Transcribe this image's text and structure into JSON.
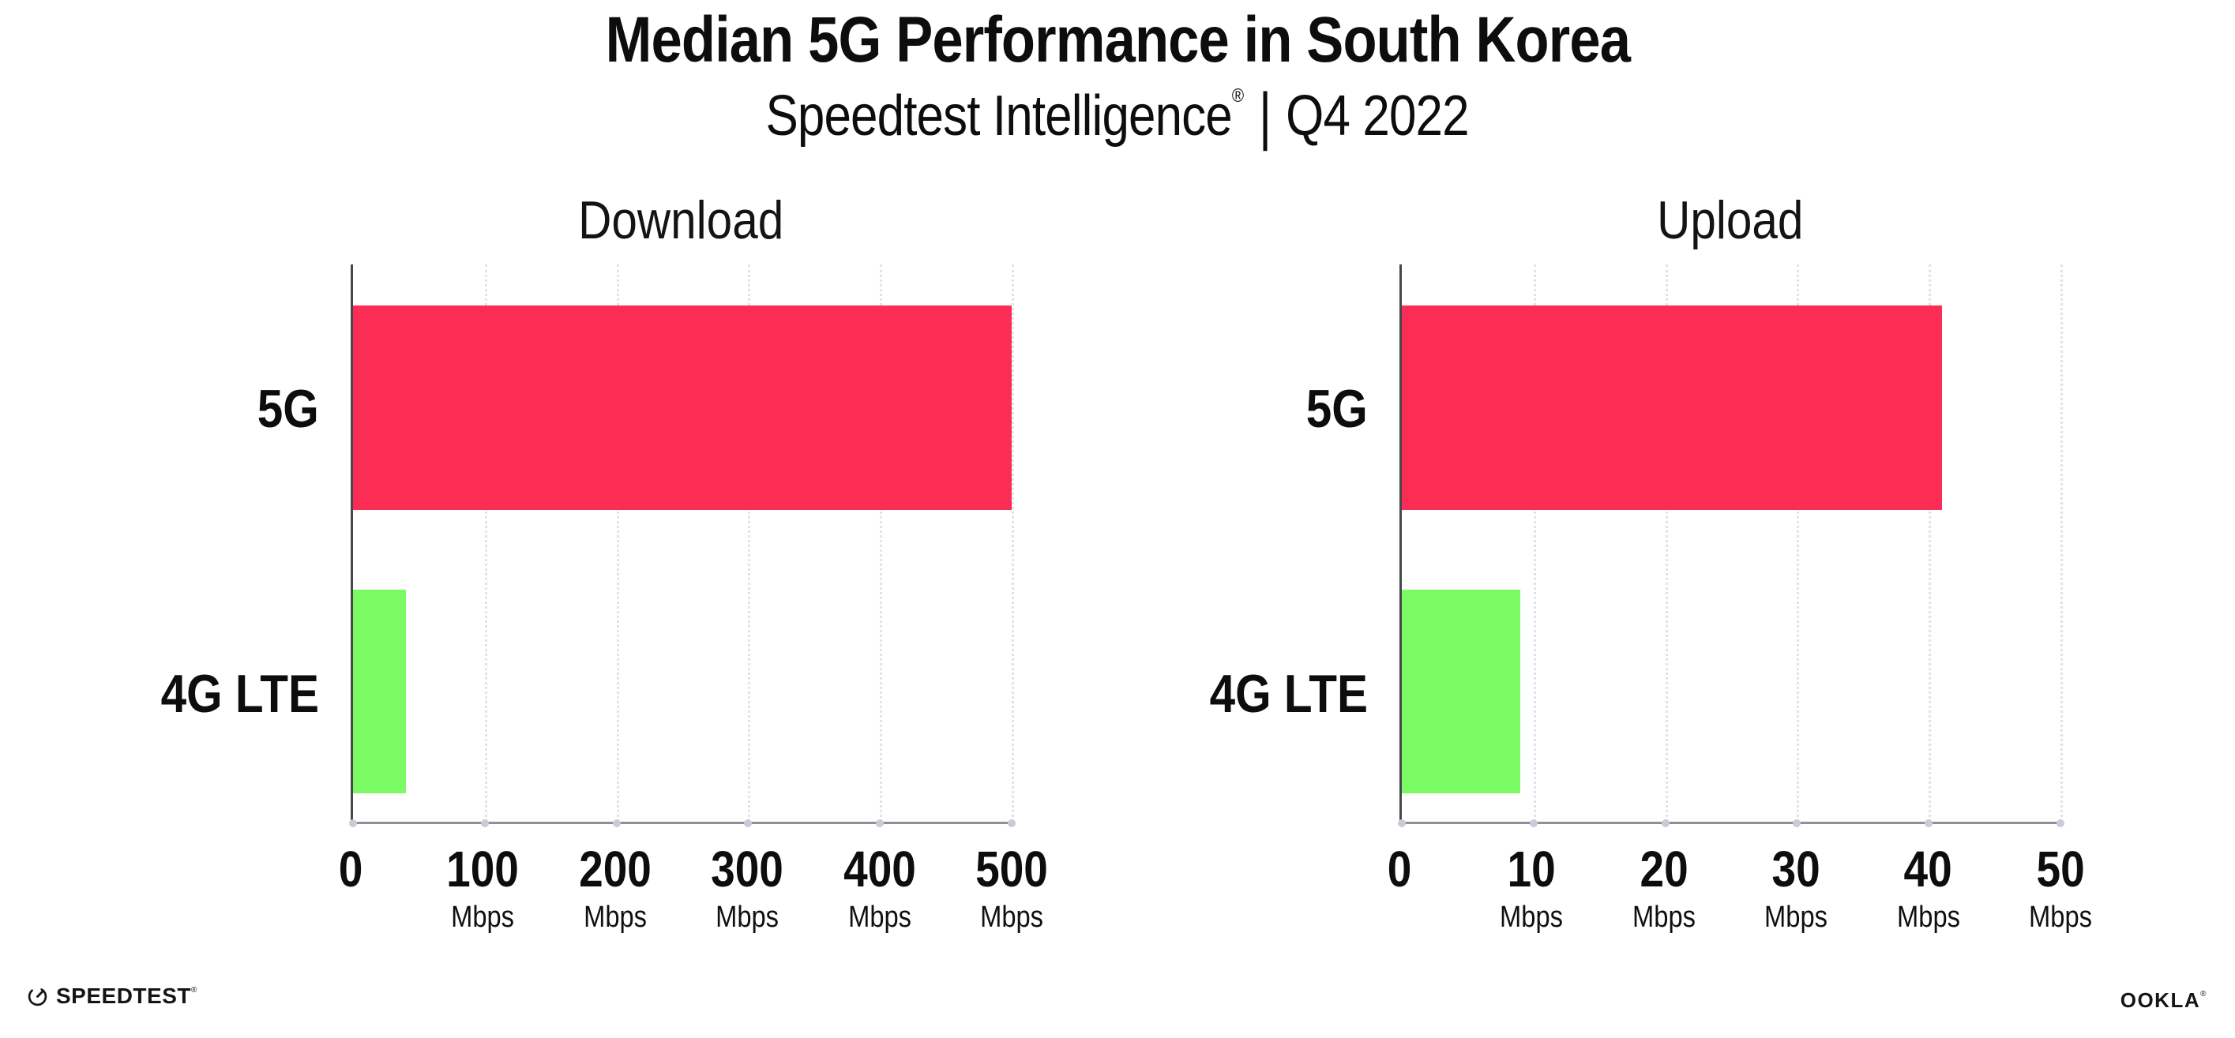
{
  "page": {
    "title": "Median 5G Performance in South Korea",
    "subtitle_brand": "Speedtest Intelligence",
    "subtitle_reg": "®",
    "subtitle_divider": "|",
    "subtitle_period": "Q4 2022"
  },
  "colors": {
    "bar_5g": "#FC2D55",
    "bar_4g_lte": "#7CFA63",
    "gridline": "#E2E3EA",
    "left_spine": "#46474C",
    "bottom_spine": "#8E9096",
    "text": "#0D0D0F"
  },
  "chart_data": [
    {
      "type": "bar",
      "orientation": "horizontal",
      "title": "Download",
      "categories": [
        "5G",
        "4G LTE"
      ],
      "values": [
        500,
        40
      ],
      "bar_colors": [
        "#FC2D55",
        "#7CFA63"
      ],
      "xlim": [
        0,
        500
      ],
      "xticks": [
        0,
        100,
        200,
        300,
        400,
        500
      ],
      "tick_unit_label": "Mbps",
      "grid": "dotted-vertical",
      "legend": "none"
    },
    {
      "type": "bar",
      "orientation": "horizontal",
      "title": "Upload",
      "categories": [
        "5G",
        "4G LTE"
      ],
      "values": [
        41,
        9
      ],
      "bar_colors": [
        "#FC2D55",
        "#7CFA63"
      ],
      "xlim": [
        0,
        50
      ],
      "xticks": [
        0,
        10,
        20,
        30,
        40,
        50
      ],
      "tick_unit_label": "Mbps",
      "grid": "dotted-vertical",
      "legend": "none"
    }
  ],
  "footer": {
    "speedtest_label": "SPEEDTEST",
    "speedtest_mark": "®",
    "gauge_icon": "speedtest-gauge",
    "ookla_label": "OOKLA",
    "ookla_mark": "®"
  }
}
